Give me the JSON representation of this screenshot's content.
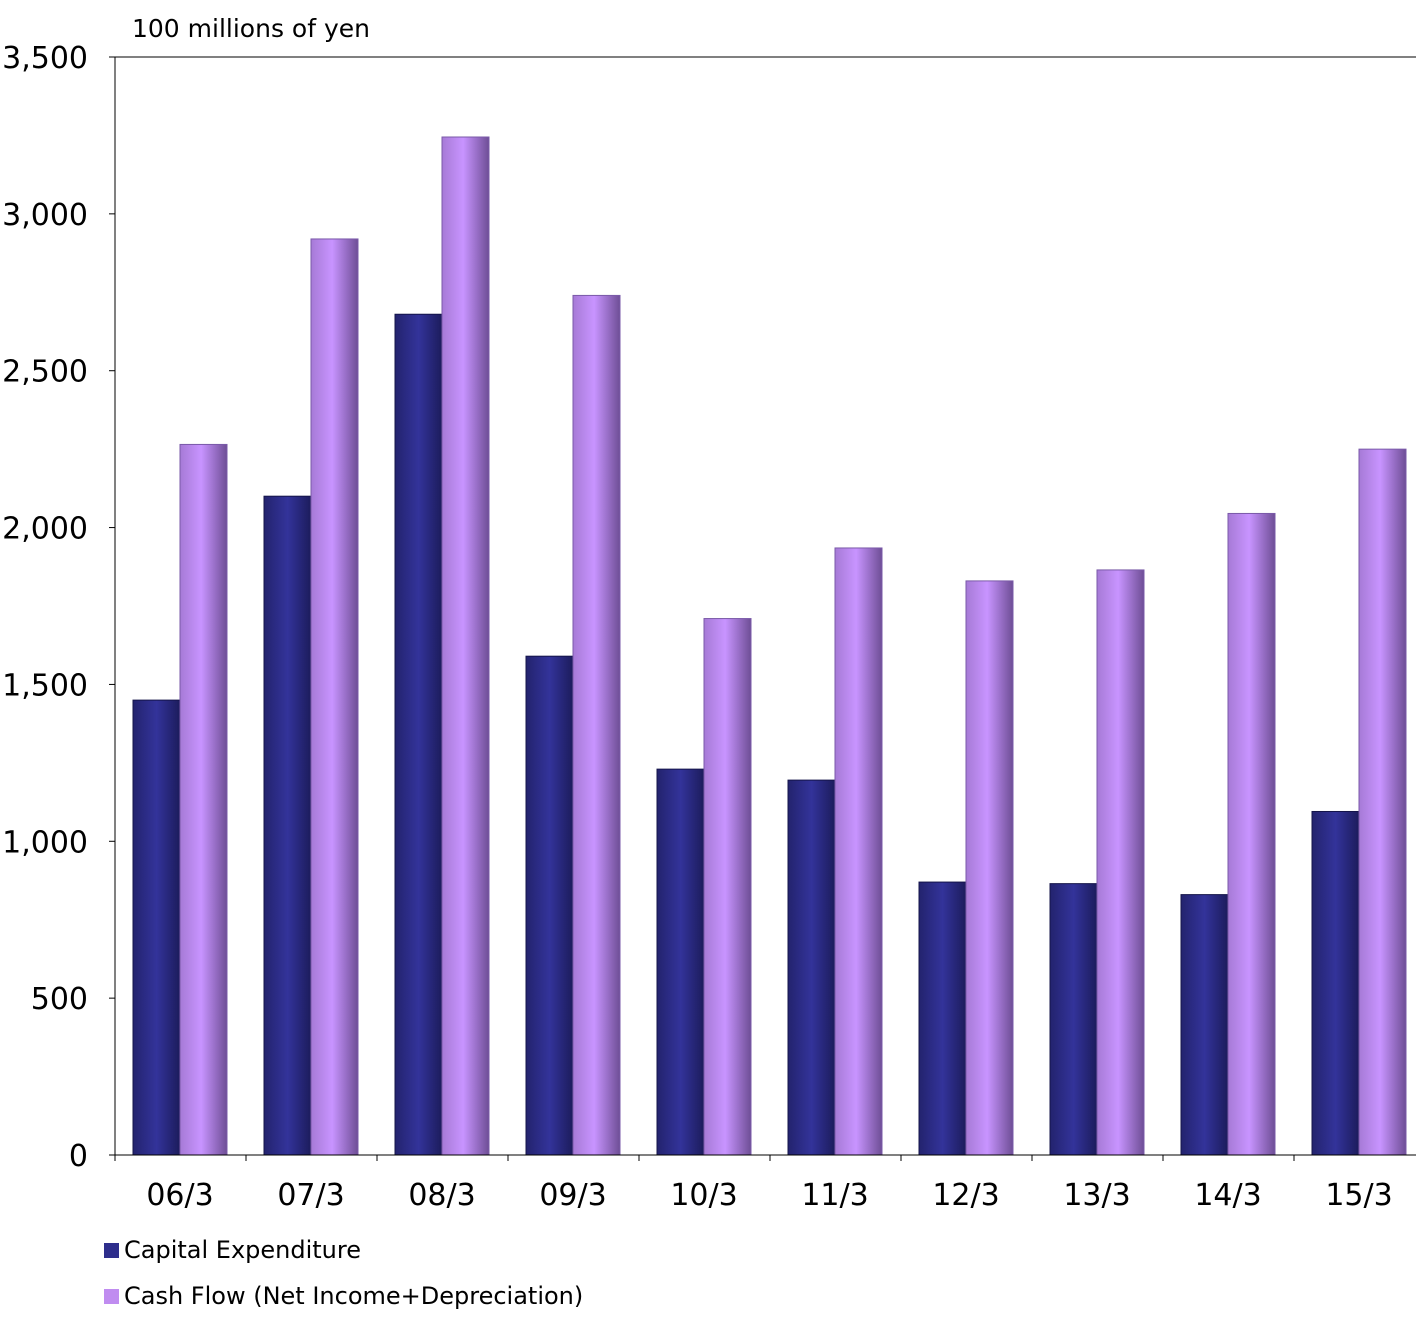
{
  "chart_data": {
    "type": "bar",
    "unit_label": "100 millions of yen",
    "categories": [
      "06/3",
      "07/3",
      "08/3",
      "09/3",
      "10/3",
      "11/3",
      "12/3",
      "13/3",
      "14/3",
      "15/3"
    ],
    "series": [
      {
        "name": "Capital Expenditure",
        "color": "#2e2e8c",
        "values": [
          1450,
          2100,
          2680,
          1590,
          1230,
          1195,
          870,
          865,
          830,
          1095
        ]
      },
      {
        "name": "Cash Flow (Net Income+Depreciation)",
        "color": "#c08cf0",
        "values": [
          2265,
          2920,
          3245,
          2740,
          1710,
          1935,
          1830,
          1865,
          2045,
          2250
        ]
      }
    ],
    "ylim": [
      0,
      3500
    ],
    "yticks": [
      0,
      500,
      1000,
      1500,
      2000,
      2500,
      3000,
      3500
    ],
    "ytick_labels": [
      "0",
      "500",
      "1,000",
      "1,500",
      "2,000",
      "2,500",
      "3,000",
      "3,500"
    ],
    "grid": false,
    "legend_position": "bottom-left"
  }
}
